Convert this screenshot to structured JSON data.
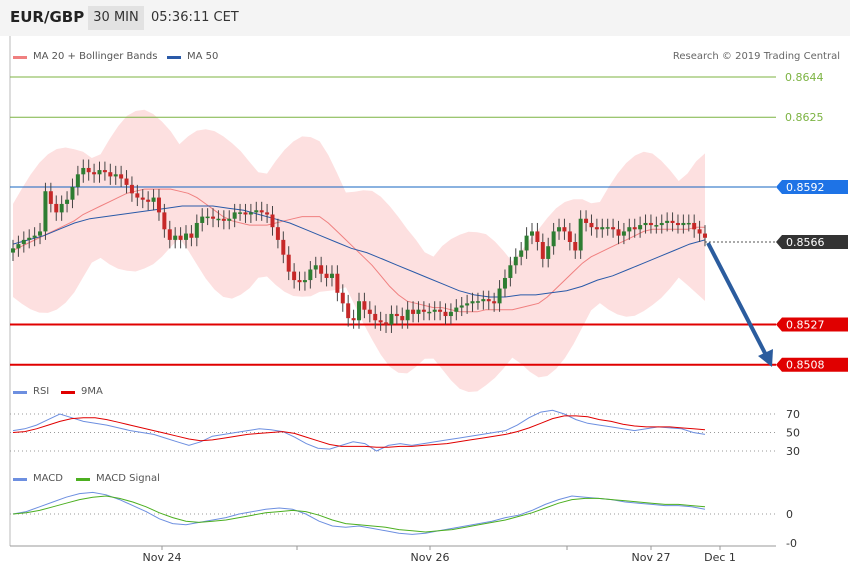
{
  "header": {
    "symbol": "EUR/GBP",
    "timeframe": "30 MIN",
    "time": "05:36:11 CET"
  },
  "legend": {
    "ma20_label": "MA 20 + Bollinger Bands",
    "ma50_label": "MA 50",
    "ma20_color": "#f08080",
    "ma50_color": "#2a5aa8"
  },
  "copyright": "Research © 2019 Trading Central",
  "rsi_legend": {
    "rsi": "RSI",
    "ma": "9MA"
  },
  "macd_legend": {
    "macd": "MACD",
    "signal": "MACD Signal"
  },
  "colors": {
    "up": "#2e7d32",
    "down": "#c62828",
    "level_green": "#7cb342",
    "level_blue": "#1565c0",
    "level_red": "#e00000",
    "current": "#333333",
    "arrow": "#2b5c9e",
    "band": "#fde0e0"
  },
  "chart_data": {
    "type": "candlestick",
    "x_labels": [
      "Nov 24",
      "Nov 26",
      "Nov 27",
      "Dec 1"
    ],
    "price_levels": [
      {
        "value": "0.8644",
        "kind": "green"
      },
      {
        "value": "0.8625",
        "kind": "green"
      },
      {
        "value": "0.8592",
        "kind": "blue"
      },
      {
        "value": "0.8566",
        "kind": "current"
      },
      {
        "value": "0.8527",
        "kind": "red"
      },
      {
        "value": "0.8508",
        "kind": "red"
      }
    ],
    "rsi_levels": [
      "70",
      "50",
      "30"
    ],
    "macd_levels": [
      "0",
      "-0"
    ],
    "close": [
      0.8563,
      0.8565,
      0.8567,
      0.8568,
      0.8569,
      0.8571,
      0.859,
      0.8584,
      0.858,
      0.8584,
      0.8586,
      0.8592,
      0.8598,
      0.8601,
      0.8599,
      0.8598,
      0.86,
      0.8599,
      0.8597,
      0.8598,
      0.8596,
      0.8593,
      0.8589,
      0.8587,
      0.8586,
      0.8585,
      0.8587,
      0.858,
      0.8572,
      0.8567,
      0.8569,
      0.8567,
      0.857,
      0.8568,
      0.8575,
      0.8578,
      0.8578,
      0.8577,
      0.8577,
      0.8576,
      0.8577,
      0.858,
      0.858,
      0.8579,
      0.858,
      0.8581,
      0.858,
      0.8579,
      0.8573,
      0.8567,
      0.856,
      0.8552,
      0.8548,
      0.8547,
      0.8548,
      0.8553,
      0.8555,
      0.8551,
      0.8549,
      0.8551,
      0.8542,
      0.8537,
      0.853,
      0.8529,
      0.8538,
      0.8534,
      0.8532,
      0.8529,
      0.8528,
      0.8527,
      0.8532,
      0.8531,
      0.8529,
      0.8534,
      0.8532,
      0.8534,
      0.8533,
      0.8533,
      0.8534,
      0.8533,
      0.8531,
      0.8533,
      0.8535,
      0.8536,
      0.8537,
      0.8538,
      0.8538,
      0.8539,
      0.8538,
      0.8537,
      0.8544,
      0.8549,
      0.8555,
      0.8559,
      0.8562,
      0.8569,
      0.8571,
      0.8566,
      0.8558,
      0.8564,
      0.8571,
      0.8573,
      0.8571,
      0.8566,
      0.8562,
      0.8577,
      0.8575,
      0.8573,
      0.8572,
      0.8573,
      0.8573,
      0.8572,
      0.8569,
      0.8571,
      0.8573,
      0.8572,
      0.8574,
      0.8575,
      0.8574,
      0.8574,
      0.8575,
      0.8576,
      0.8575,
      0.8574,
      0.8575,
      0.8575,
      0.8572,
      0.857,
      0.8568
    ],
    "ma20": [
      0.8562,
      0.8564,
      0.8566,
      0.8568,
      0.857,
      0.8572,
      0.8574,
      0.8576,
      0.8579,
      0.8581,
      0.8583,
      0.8585,
      0.8587,
      0.8589,
      0.859,
      0.8591,
      0.8591,
      0.8591,
      0.8591,
      0.859,
      0.8589,
      0.8587,
      0.8584,
      0.8581,
      0.8578,
      0.8576,
      0.8575,
      0.8574,
      0.8574,
      0.8574,
      0.8575,
      0.8576,
      0.8577,
      0.8578,
      0.8578,
      0.8578,
      0.8575,
      0.8571,
      0.8567,
      0.8563,
      0.8559,
      0.8555,
      0.855,
      0.8545,
      0.8541,
      0.8538,
      0.8537,
      0.8536,
      0.8535,
      0.8535,
      0.8534,
      0.8533,
      0.8533,
      0.8533,
      0.8534,
      0.8534,
      0.8534,
      0.8534,
      0.8535,
      0.8536,
      0.8537,
      0.854,
      0.8544,
      0.8548,
      0.8552,
      0.8556,
      0.8559,
      0.8561,
      0.8563,
      0.8565,
      0.8567,
      0.8569,
      0.8571,
      0.8572,
      0.8572,
      0.8572,
      0.8572,
      0.8572,
      0.8573,
      0.8573
    ],
    "ma50": [
      0.8565,
      0.8567,
      0.8569,
      0.8572,
      0.8575,
      0.8577,
      0.8578,
      0.8579,
      0.858,
      0.8581,
      0.8582,
      0.8583,
      0.8583,
      0.8583,
      0.8582,
      0.8581,
      0.8579,
      0.8577,
      0.8575,
      0.8572,
      0.8569,
      0.8566,
      0.8563,
      0.8561,
      0.8558,
      0.8555,
      0.8552,
      0.8549,
      0.8546,
      0.8543,
      0.8541,
      0.854,
      0.854,
      0.8541,
      0.8541,
      0.8542,
      0.8543,
      0.8545,
      0.8548,
      0.855,
      0.8553,
      0.8556,
      0.8559,
      0.8562,
      0.8565,
      0.8567
    ],
    "rsi": [
      52,
      54,
      58,
      64,
      70,
      66,
      62,
      60,
      58,
      55,
      52,
      50,
      48,
      44,
      40,
      36,
      40,
      46,
      48,
      50,
      52,
      54,
      53,
      51,
      45,
      38,
      33,
      32,
      36,
      40,
      38,
      30,
      36,
      38,
      36,
      38,
      40,
      42,
      44,
      46,
      48,
      50,
      52,
      58,
      66,
      72,
      74,
      70,
      64,
      60,
      58,
      56,
      54,
      52,
      54,
      56,
      55,
      54,
      50,
      48
    ],
    "rsi_ma": [
      50,
      51,
      54,
      58,
      62,
      65,
      66,
      66,
      64,
      61,
      58,
      55,
      52,
      49,
      46,
      43,
      41,
      42,
      44,
      46,
      48,
      49,
      50,
      51,
      49,
      45,
      41,
      37,
      35,
      35,
      35,
      34,
      34,
      35,
      35,
      36,
      37,
      38,
      40,
      42,
      44,
      46,
      48,
      51,
      55,
      60,
      65,
      68,
      68,
      67,
      64,
      62,
      59,
      57,
      56,
      56,
      56,
      55,
      54,
      53
    ],
    "macd": [
      0.0,
      0.2,
      0.6,
      1.0,
      1.4,
      1.7,
      1.8,
      1.6,
      1.2,
      0.7,
      0.2,
      -0.4,
      -0.8,
      -0.9,
      -0.7,
      -0.5,
      -0.3,
      0.0,
      0.2,
      0.4,
      0.5,
      0.4,
      0.0,
      -0.6,
      -1.0,
      -1.1,
      -1.0,
      -1.2,
      -1.4,
      -1.6,
      -1.7,
      -1.6,
      -1.4,
      -1.2,
      -1.0,
      -0.8,
      -0.6,
      -0.3,
      -0.1,
      0.3,
      0.8,
      1.2,
      1.5,
      1.4,
      1.3,
      1.2,
      1.0,
      0.9,
      0.8,
      0.7,
      0.7,
      0.6,
      0.4
    ],
    "macd_signal": [
      0.0,
      0.1,
      0.3,
      0.6,
      0.9,
      1.2,
      1.4,
      1.5,
      1.3,
      1.0,
      0.6,
      0.1,
      -0.3,
      -0.6,
      -0.7,
      -0.6,
      -0.5,
      -0.3,
      -0.1,
      0.1,
      0.2,
      0.3,
      0.2,
      -0.1,
      -0.5,
      -0.8,
      -0.9,
      -1.0,
      -1.1,
      -1.3,
      -1.4,
      -1.5,
      -1.4,
      -1.3,
      -1.1,
      -0.9,
      -0.7,
      -0.5,
      -0.2,
      0.1,
      0.5,
      0.9,
      1.2,
      1.3,
      1.3,
      1.2,
      1.1,
      1.0,
      0.9,
      0.8,
      0.8,
      0.7,
      0.6
    ]
  }
}
